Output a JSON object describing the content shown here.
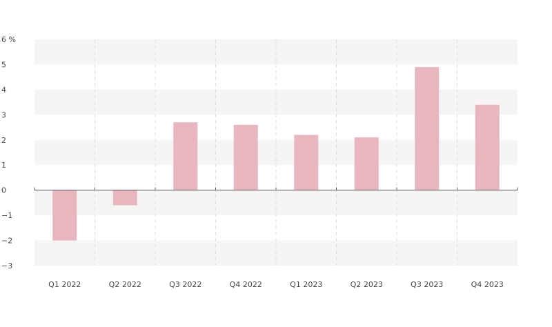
{
  "chart_data": {
    "type": "bar",
    "title": "",
    "xlabel": "",
    "ylabel": "",
    "categories": [
      "Q1 2022",
      "Q2 2022",
      "Q3 2022",
      "Q4 2022",
      "Q1 2023",
      "Q2 2023",
      "Q3 2023",
      "Q4 2023"
    ],
    "values": [
      -2.0,
      -0.6,
      2.7,
      2.6,
      2.2,
      2.1,
      4.9,
      3.4
    ],
    "ylim": [
      -3,
      6
    ],
    "yticks": [
      {
        "value": 6,
        "label": "6 %"
      },
      {
        "value": 5,
        "label": "5"
      },
      {
        "value": 4,
        "label": "4"
      },
      {
        "value": 3,
        "label": "3"
      },
      {
        "value": 2,
        "label": "2"
      },
      {
        "value": 1,
        "label": "1"
      },
      {
        "value": 0,
        "label": "0"
      },
      {
        "value": -1,
        "label": "−1"
      },
      {
        "value": -2,
        "label": "−2"
      },
      {
        "value": -3,
        "label": "−3"
      }
    ],
    "grid": true,
    "legend": "none",
    "colors": {
      "bar": "#e8b6bf",
      "band": "#f6f5f3",
      "axis": "#555555",
      "vgrid": "#dddddd",
      "text": "#444444"
    }
  }
}
